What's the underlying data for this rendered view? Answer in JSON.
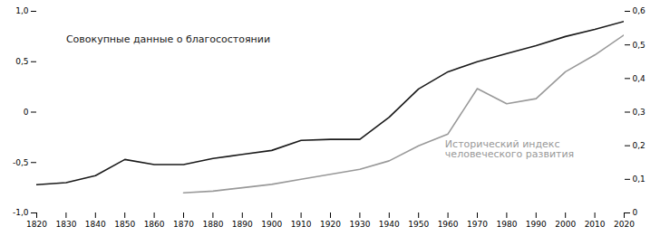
{
  "chart_data": {
    "type": "line",
    "x": [
      1820,
      1830,
      1840,
      1850,
      1860,
      1870,
      1880,
      1890,
      1900,
      1910,
      1920,
      1930,
      1940,
      1950,
      1960,
      1970,
      1980,
      1990,
      2000,
      2010,
      2020
    ],
    "series": [
      {
        "color": "#1a1a1a",
        "values": [
          -0.72,
          -0.7,
          -0.63,
          -0.47,
          -0.52,
          -0.52,
          -0.46,
          -0.42,
          -0.38,
          -0.28,
          -0.27,
          -0.27,
          -0.05,
          0.23,
          0.4,
          0.5,
          0.58,
          0.66,
          0.75,
          0.82,
          0.9
        ]
      },
      {
        "color": "#999999",
        "axis": "y2",
        "values": [
          null,
          null,
          null,
          null,
          null,
          0.06,
          0.065,
          0.075,
          0.085,
          0.1,
          0.115,
          0.13,
          0.155,
          0.2,
          0.235,
          0.37,
          0.325,
          0.34,
          0.42,
          0.47,
          0.53
        ]
      }
    ],
    "xlim": [
      1820,
      2020
    ],
    "xticks": [
      1820,
      1830,
      1840,
      1850,
      1860,
      1870,
      1880,
      1890,
      1900,
      1910,
      1920,
      1930,
      1940,
      1950,
      1960,
      1970,
      1980,
      1990,
      2000,
      2010,
      2020
    ],
    "ylim": [
      -1.0,
      1.0
    ],
    "yticks": [
      {
        "value": -1.0,
        "label": "-1,0"
      },
      {
        "value": -0.5,
        "label": "-0,5"
      },
      0,
      {
        "value": 0.5,
        "label": "0,5"
      },
      {
        "value": 1.0,
        "label": "1,0"
      }
    ],
    "y2lim": [
      0,
      0.6
    ],
    "y2ticks": [
      0,
      {
        "value": 0.1,
        "label": "0,1"
      },
      {
        "value": 0.2,
        "label": "0,2"
      },
      {
        "value": 0.3,
        "label": "0,3"
      },
      {
        "value": 0.4,
        "label": "0,4"
      },
      {
        "value": 0.5,
        "label": "0,5"
      },
      {
        "value": 0.6,
        "label": "0,6"
      }
    ],
    "annotations": [
      {
        "text": "Совокупные данные о благосостоянии",
        "color": "#1a1a1a"
      },
      {
        "text": "Исторический индекс\nчеловеческого развития",
        "color": "#999999"
      }
    ],
    "grid": false
  }
}
